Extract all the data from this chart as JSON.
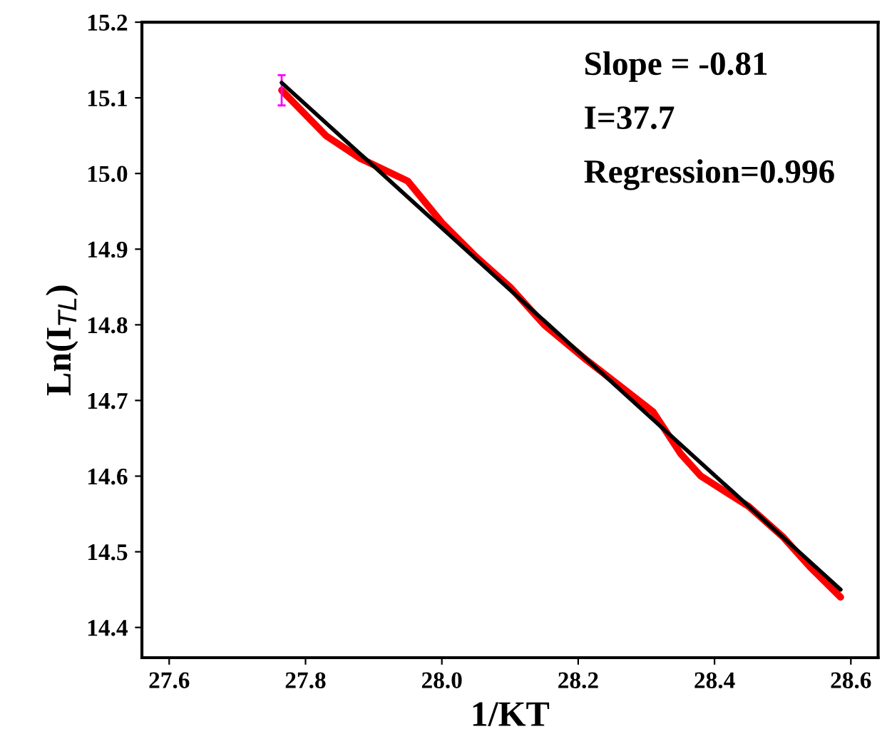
{
  "chart_data": {
    "type": "line",
    "xlabel": "1/KT",
    "ylabel": "Ln(I$_{TL}$)",
    "xlim": [
      27.56,
      28.64
    ],
    "xticks": [
      27.6,
      27.8,
      {
        "value": 28.0,
        "label": "28.0"
      },
      28.2,
      28.4,
      28.6
    ],
    "ylim": [
      14.36,
      15.2
    ],
    "yticks": [
      14.4,
      14.5,
      14.6,
      14.7,
      14.8,
      14.9,
      {
        "value": 15.0,
        "label": "15.0"
      },
      15.1,
      15.2
    ],
    "grid": false,
    "annotations": [
      "Slope = -0.81",
      "I=37.7",
      "Regression=0.996"
    ],
    "series": [
      {
        "color": "#ff0000",
        "x": [
          27.765,
          27.83,
          27.88,
          27.95,
          28.0,
          28.05,
          28.1,
          28.15,
          28.21,
          28.26,
          28.31,
          28.35,
          28.38,
          28.45,
          28.5,
          28.54,
          28.585
        ],
        "values": [
          15.11,
          15.05,
          15.02,
          14.99,
          14.935,
          14.89,
          14.85,
          14.8,
          14.755,
          14.72,
          14.685,
          14.63,
          14.6,
          14.56,
          14.52,
          14.48,
          14.44
        ],
        "errors": [
          0.02,
          null,
          null,
          null,
          null,
          null,
          null,
          null,
          null,
          null,
          null,
          null,
          null,
          null,
          null,
          null,
          null
        ]
      },
      {
        "color": "#000000",
        "x": [
          27.765,
          28.585
        ],
        "values": [
          15.12,
          14.45
        ]
      }
    ]
  }
}
